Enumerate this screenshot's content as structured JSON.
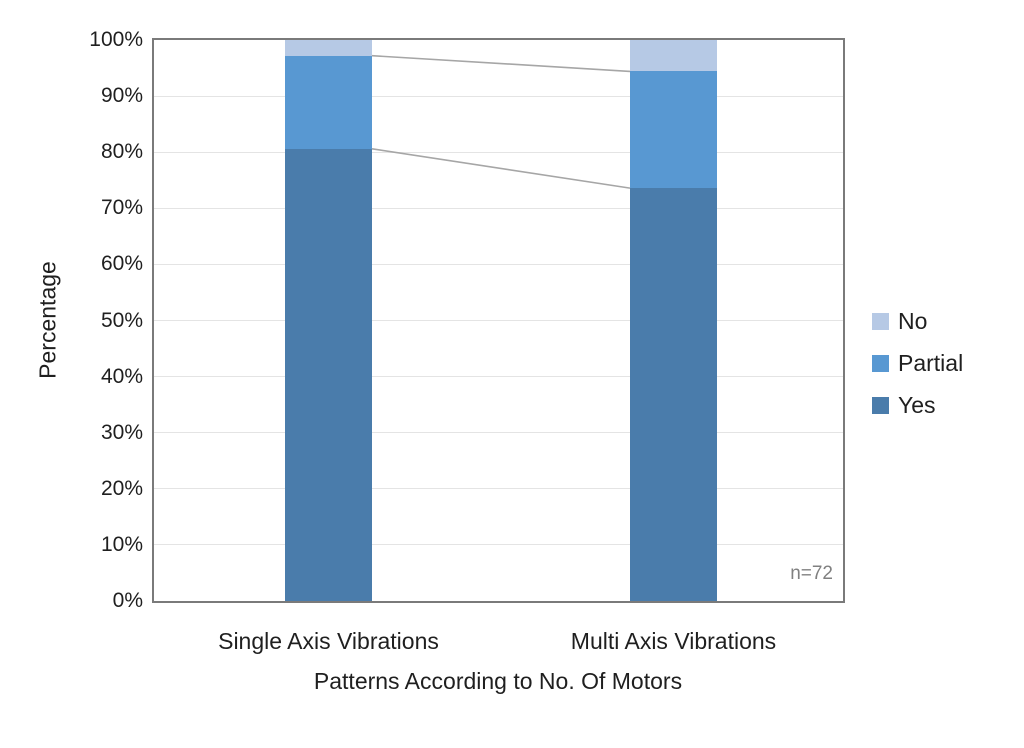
{
  "chart_data": {
    "type": "bar",
    "subtype": "stacked-100-percent-column",
    "title": "",
    "categories": [
      "Single Axis Vibrations",
      "Multi Axis Vibrations"
    ],
    "series": [
      {
        "name": "Yes",
        "color": "#4A7CAB",
        "values": [
          80.6,
          73.6
        ]
      },
      {
        "name": "Partial",
        "color": "#5898D2",
        "values": [
          16.6,
          20.8
        ]
      },
      {
        "name": "No",
        "color": "#B6C9E5",
        "values": [
          2.8,
          5.6
        ]
      }
    ],
    "stack_order_bottom_to_top": [
      "Yes",
      "Partial",
      "No"
    ],
    "xlabel": "Patterns According to No. Of Motors",
    "ylabel": "Percentage",
    "ylim": [
      0,
      100
    ],
    "ytick_step": 10,
    "yticks": [
      "0%",
      "10%",
      "20%",
      "30%",
      "40%",
      "50%",
      "60%",
      "70%",
      "80%",
      "90%",
      "100%"
    ],
    "legend": {
      "position": "right",
      "entries": [
        "No",
        "Partial",
        "Yes"
      ]
    },
    "annotation": "n=72",
    "grid": true,
    "series_lines": true,
    "colors": {
      "gridline": "#e4e4e4",
      "plot_border": "#7a7a7a",
      "series_line": "#a6a6a6",
      "text": "#1f1f1f",
      "annotation_text": "#808080",
      "background": "#ffffff"
    }
  }
}
